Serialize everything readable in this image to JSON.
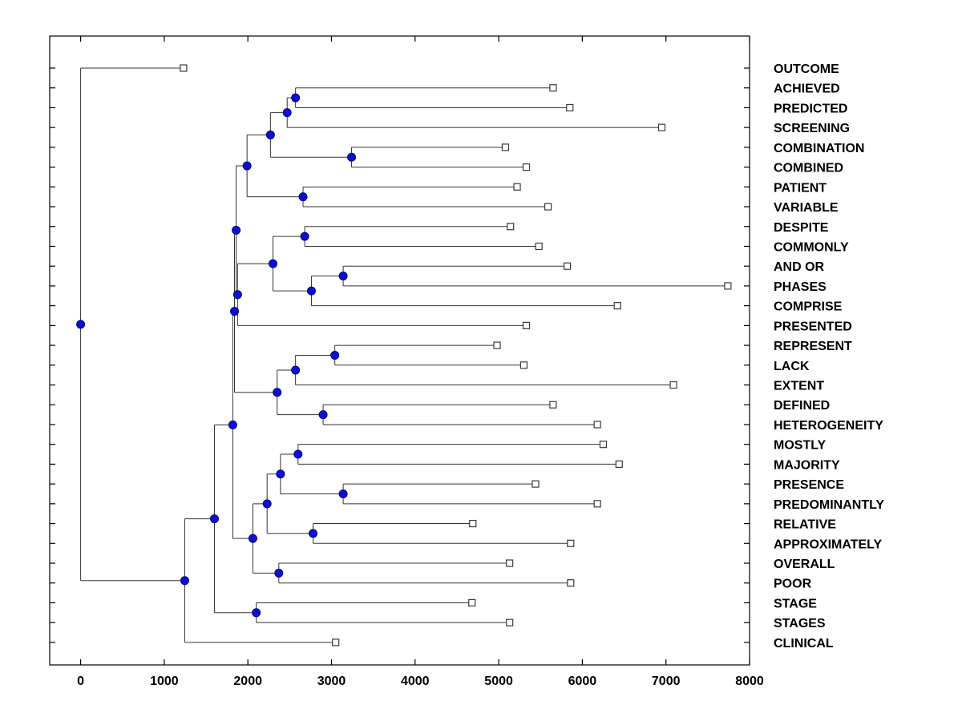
{
  "figure": {
    "background": "#ffffff"
  },
  "chart_data": {
    "type": "dendrogram",
    "orientation": "horizontal-left-root",
    "title": "",
    "xlabel": "",
    "ylabel": "",
    "axes": {
      "xlim": [
        -370,
        8000
      ],
      "x_ticks": [
        0,
        1000,
        2000,
        3000,
        4000,
        5000,
        6000,
        7000,
        8000
      ],
      "x_tick_labels": [
        "0",
        "1000",
        "2000",
        "3000",
        "4000",
        "5000",
        "6000",
        "7000",
        "8000"
      ],
      "grid": false,
      "box": true
    },
    "style": {
      "line_color": "#333333",
      "box_color": "#000000",
      "node_fill": "#0f0fd0",
      "node_stroke": "#00008b",
      "leaf_marker_fill": "#ffffff",
      "leaf_marker_stroke": "#3a3a3a"
    },
    "leaves": [
      {
        "label": "OUTCOME",
        "value": 1230
      },
      {
        "label": "ACHIEVED",
        "value": 5650
      },
      {
        "label": "PREDICTED",
        "value": 5850
      },
      {
        "label": "SCREENING",
        "value": 6950
      },
      {
        "label": "COMBINATION",
        "value": 5080
      },
      {
        "label": "COMBINED",
        "value": 5330
      },
      {
        "label": "PATIENT",
        "value": 5220
      },
      {
        "label": "VARIABLE",
        "value": 5590
      },
      {
        "label": "DESPITE",
        "value": 5140
      },
      {
        "label": "COMMONLY",
        "value": 5480
      },
      {
        "label": "AND OR",
        "value": 5820
      },
      {
        "label": "PHASES",
        "value": 7740
      },
      {
        "label": "COMPRISE",
        "value": 6420
      },
      {
        "label": "PRESENTED",
        "value": 5330
      },
      {
        "label": "REPRESENT",
        "value": 4980
      },
      {
        "label": "LACK",
        "value": 5300
      },
      {
        "label": "EXTENT",
        "value": 7090
      },
      {
        "label": "DEFINED",
        "value": 5650
      },
      {
        "label": "HETEROGENEITY",
        "value": 6180
      },
      {
        "label": "MOSTLY",
        "value": 6250
      },
      {
        "label": "MAJORITY",
        "value": 6440
      },
      {
        "label": "PRESENCE",
        "value": 5440
      },
      {
        "label": "PREDOMINANTLY",
        "value": 6180
      },
      {
        "label": "RELATIVE",
        "value": 4690
      },
      {
        "label": "APPROXIMATELY",
        "value": 5860
      },
      {
        "label": "OVERALL",
        "value": 5130
      },
      {
        "label": "POOR",
        "value": 5860
      },
      {
        "label": "STAGE",
        "value": 4680
      },
      {
        "label": "STAGES",
        "value": 5130
      },
      {
        "label": "CLINICAL",
        "value": 3050
      }
    ],
    "tree": {
      "x": 0,
      "children": [
        {
          "leaf": "OUTCOME"
        },
        {
          "x": 1245,
          "children": [
            {
              "x": 1600,
              "children": [
                {
                  "x": 1820,
                  "children": [
                    {
                      "x": 1840,
                      "children": [
                        {
                          "x": 1860,
                          "children": [
                            {
                              "x": 1990,
                              "children": [
                                {
                                  "x": 2270,
                                  "children": [
                                    {
                                      "x": 2470,
                                      "children": [
                                        {
                                          "x": 2570,
                                          "children": [
                                            {
                                              "leaf": "ACHIEVED"
                                            },
                                            {
                                              "leaf": "PREDICTED"
                                            }
                                          ]
                                        },
                                        {
                                          "leaf": "SCREENING"
                                        }
                                      ]
                                    },
                                    {
                                      "x": 3240,
                                      "children": [
                                        {
                                          "leaf": "COMBINATION"
                                        },
                                        {
                                          "leaf": "COMBINED"
                                        }
                                      ]
                                    }
                                  ]
                                },
                                {
                                  "x": 2660,
                                  "children": [
                                    {
                                      "leaf": "PATIENT"
                                    },
                                    {
                                      "leaf": "VARIABLE"
                                    }
                                  ]
                                }
                              ]
                            },
                            {
                              "x": 1877,
                              "children": [
                                {
                                  "x": 2300,
                                  "children": [
                                    {
                                      "x": 2680,
                                      "children": [
                                        {
                                          "leaf": "DESPITE"
                                        },
                                        {
                                          "leaf": "COMMONLY"
                                        }
                                      ]
                                    },
                                    {
                                      "x": 2760,
                                      "children": [
                                        {
                                          "x": 3140,
                                          "children": [
                                            {
                                              "leaf": "AND OR"
                                            },
                                            {
                                              "leaf": "PHASES"
                                            }
                                          ]
                                        },
                                        {
                                          "leaf": "COMPRISE"
                                        }
                                      ]
                                    }
                                  ]
                                },
                                {
                                  "leaf": "PRESENTED"
                                }
                              ]
                            }
                          ]
                        },
                        {
                          "x": 2350,
                          "children": [
                            {
                              "x": 2570,
                              "children": [
                                {
                                  "x": 3040,
                                  "children": [
                                    {
                                      "leaf": "REPRESENT"
                                    },
                                    {
                                      "leaf": "LACK"
                                    }
                                  ]
                                },
                                {
                                  "leaf": "EXTENT"
                                }
                              ]
                            },
                            {
                              "x": 2900,
                              "children": [
                                {
                                  "leaf": "DEFINED"
                                },
                                {
                                  "leaf": "HETEROGENEITY"
                                }
                              ]
                            }
                          ]
                        }
                      ]
                    },
                    {
                      "x": 2060,
                      "children": [
                        {
                          "x": 2230,
                          "children": [
                            {
                              "x": 2390,
                              "children": [
                                {
                                  "x": 2600,
                                  "children": [
                                    {
                                      "leaf": "MOSTLY"
                                    },
                                    {
                                      "leaf": "MAJORITY"
                                    }
                                  ]
                                },
                                {
                                  "x": 3140,
                                  "children": [
                                    {
                                      "leaf": "PRESENCE"
                                    },
                                    {
                                      "leaf": "PREDOMINANTLY"
                                    }
                                  ]
                                }
                              ]
                            },
                            {
                              "x": 2780,
                              "children": [
                                {
                                  "leaf": "RELATIVE"
                                },
                                {
                                  "leaf": "APPROXIMATELY"
                                }
                              ]
                            }
                          ]
                        },
                        {
                          "x": 2370,
                          "children": [
                            {
                              "leaf": "OVERALL"
                            },
                            {
                              "leaf": "POOR"
                            }
                          ]
                        }
                      ]
                    }
                  ]
                },
                {
                  "x": 2100,
                  "children": [
                    {
                      "leaf": "STAGE"
                    },
                    {
                      "leaf": "STAGES"
                    }
                  ]
                }
              ]
            },
            {
              "leaf": "CLINICAL"
            }
          ]
        }
      ]
    }
  }
}
